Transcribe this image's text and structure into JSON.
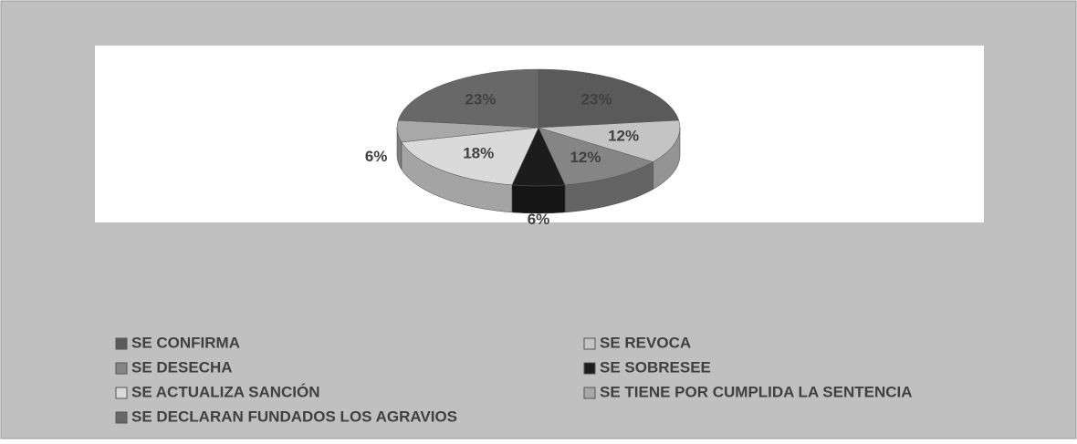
{
  "chart_data": {
    "type": "pie",
    "categories": [
      "SE CONFIRMA",
      "SE REVOCA",
      "SE DESECHA",
      "SE SOBRESEE",
      "SE ACTUALIZA SANCIÓN",
      "SE TIENE POR CUMPLIDA LA SENTENCIA",
      "SE DECLARAN FUNDADOS LOS AGRAVIOS"
    ],
    "values": [
      23,
      12,
      12,
      6,
      18,
      6,
      23
    ],
    "value_labels": [
      "23%",
      "12%",
      "12%",
      "6%",
      "18%",
      "6%",
      "23%"
    ],
    "colors": [
      "#5a5a5a",
      "#c4c4c4",
      "#858585",
      "#1c1c1c",
      "#dadada",
      "#a8a8a8",
      "#686868"
    ],
    "legend": "bottom"
  }
}
